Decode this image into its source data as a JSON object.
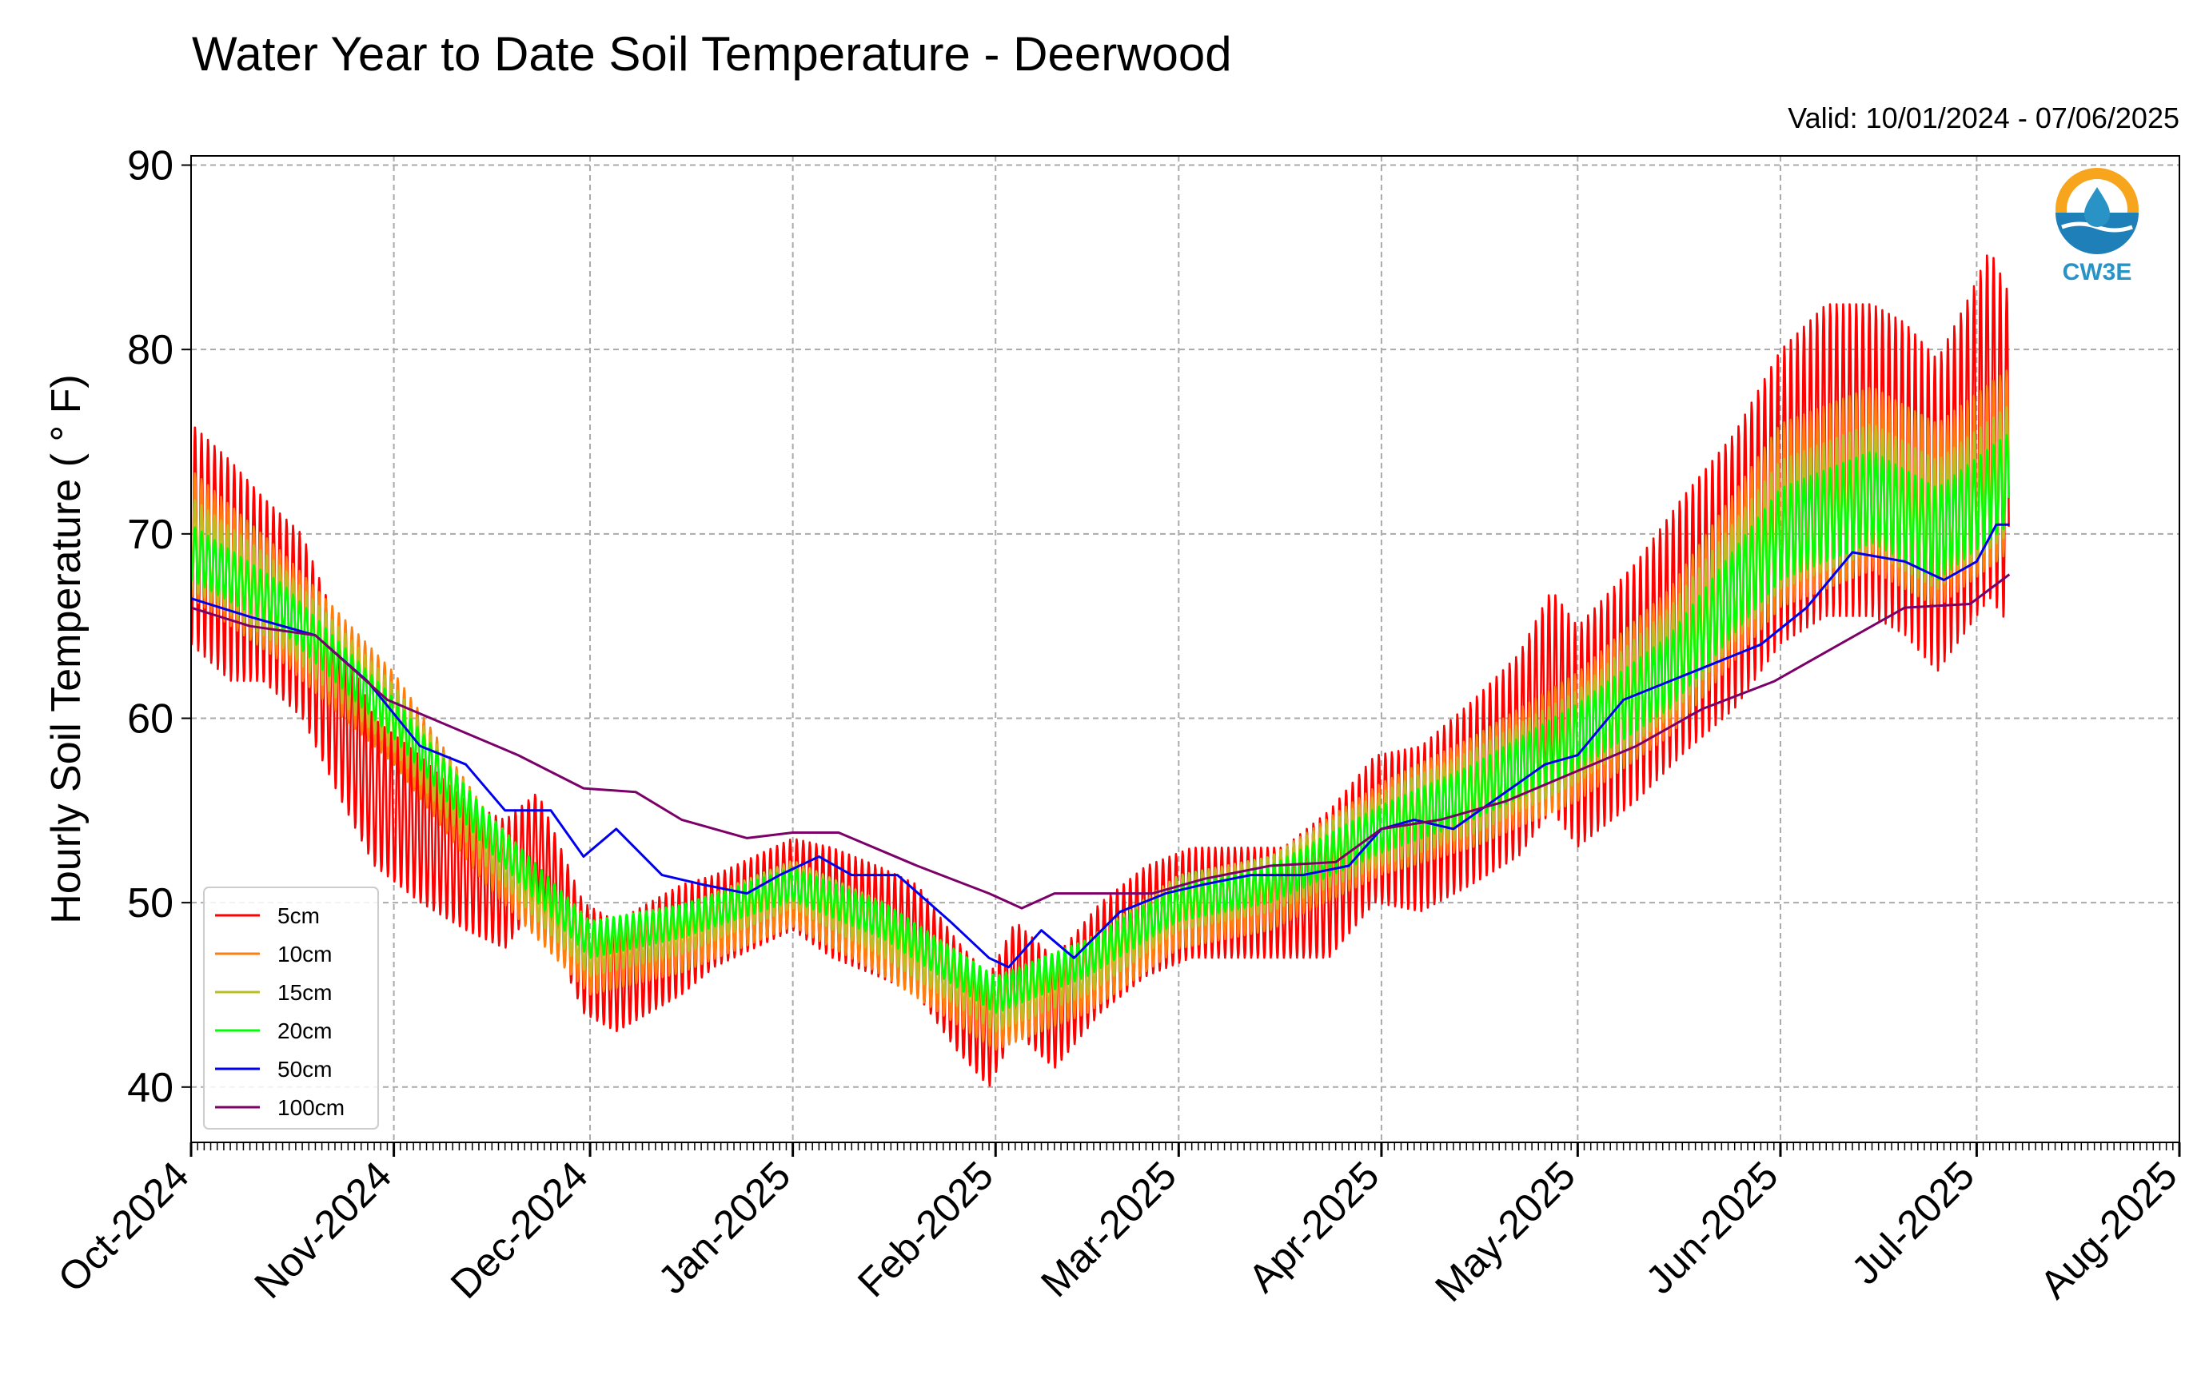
{
  "chart_data": {
    "type": "line",
    "title": "Water Year to Date Soil Temperature - Deerwood",
    "subtitle": "Valid: 10/01/2024 - 07/06/2025",
    "ylabel": "Hourly Soil Temperature ( ° F)",
    "xlabel": "",
    "ylim": [
      37,
      90.5
    ],
    "yticks": [
      40,
      50,
      60,
      70,
      80,
      90
    ],
    "ytick_labels": [
      "40",
      "50",
      "60",
      "70",
      "80",
      "90"
    ],
    "xlim": [
      "2024-10-01",
      "2025-08-01"
    ],
    "xticks": [
      "2024-10-01",
      "2024-11-01",
      "2024-12-01",
      "2025-01-01",
      "2025-02-01",
      "2025-03-01",
      "2025-04-01",
      "2025-05-01",
      "2025-06-01",
      "2025-07-01",
      "2025-08-01"
    ],
    "xtick_labels": [
      "Oct-2024",
      "Nov-2024",
      "Dec-2024",
      "Jan-2025",
      "Feb-2025",
      "Mar-2025",
      "Apr-2025",
      "May-2025",
      "Jun-2025",
      "Jul-2025",
      "Aug-2025"
    ],
    "grid": true,
    "legend_position": "lower-left",
    "logo_text": "CW3E",
    "series": [
      {
        "name": "5cm",
        "color": "#ff0000",
        "dates": [
          "2024-10-01",
          "2024-10-07",
          "2024-10-12",
          "2024-10-18",
          "2024-10-24",
          "2024-10-29",
          "2024-11-05",
          "2024-11-12",
          "2024-11-18",
          "2024-11-23",
          "2024-11-30",
          "2024-12-05",
          "2024-12-10",
          "2024-12-15",
          "2024-12-20",
          "2024-12-26",
          "2025-01-01",
          "2025-01-07",
          "2025-01-14",
          "2025-01-20",
          "2025-01-26",
          "2025-01-31",
          "2025-02-04",
          "2025-02-10",
          "2025-02-17",
          "2025-02-24",
          "2025-03-03",
          "2025-03-10",
          "2025-03-17",
          "2025-03-24",
          "2025-03-31",
          "2025-04-07",
          "2025-04-15",
          "2025-04-22",
          "2025-04-27",
          "2025-05-01",
          "2025-05-10",
          "2025-05-17",
          "2025-05-25",
          "2025-06-01",
          "2025-06-08",
          "2025-06-15",
          "2025-06-20",
          "2025-06-25",
          "2025-06-30",
          "2025-07-03",
          "2025-07-06"
        ],
        "mean": [
          70,
          68,
          67,
          65,
          60,
          56,
          54,
          52,
          51,
          53,
          47,
          46,
          47,
          48,
          49,
          50,
          51,
          50,
          49,
          48,
          45,
          43,
          46,
          44,
          47,
          49,
          50,
          50,
          50,
          51,
          54,
          54,
          56,
          58,
          61,
          59,
          62,
          65,
          68,
          72,
          74,
          74,
          73,
          71,
          74,
          76,
          74
        ],
        "amplitude": [
          6,
          6,
          5,
          5,
          4.5,
          4,
          4,
          3.5,
          3.5,
          3,
          3,
          3,
          3,
          3,
          2.5,
          2.5,
          2.5,
          3,
          3,
          3,
          3,
          3,
          3,
          3,
          3,
          3,
          3,
          3,
          3,
          4,
          4,
          4.5,
          5,
          5.5,
          6,
          6,
          6.5,
          7,
          7.5,
          8,
          8.5,
          8.5,
          8.5,
          8.5,
          9,
          9.5,
          9
        ]
      },
      {
        "name": "10cm",
        "color": "#ff7f0e",
        "dates": [
          "2024-10-01",
          "2024-10-15",
          "2024-11-01",
          "2024-11-15",
          "2024-12-01",
          "2024-12-15",
          "2025-01-01",
          "2025-01-15",
          "2025-02-01",
          "2025-02-15",
          "2025-03-01",
          "2025-03-15",
          "2025-04-01",
          "2025-04-15",
          "2025-05-01",
          "2025-05-15",
          "2025-06-01",
          "2025-06-15",
          "2025-06-25",
          "2025-07-06"
        ],
        "mean": [
          70,
          66,
          60,
          53,
          47,
          48,
          50.5,
          48,
          44,
          46,
          49.5,
          50.5,
          54,
          56,
          59,
          63,
          71,
          73,
          71,
          74
        ],
        "amplitude": [
          3.5,
          3,
          2.5,
          2,
          2,
          1.8,
          1.8,
          2,
          2,
          2,
          2,
          2,
          2.5,
          3,
          3.5,
          4,
          5,
          5,
          5,
          5
        ]
      },
      {
        "name": "15cm",
        "color": "#bcbd22",
        "dates": [
          "2024-10-01",
          "2024-10-15",
          "2024-11-01",
          "2024-11-15",
          "2024-12-01",
          "2024-12-15",
          "2025-01-01",
          "2025-01-15",
          "2025-02-01",
          "2025-02-15",
          "2025-03-01",
          "2025-03-15",
          "2025-04-01",
          "2025-04-15",
          "2025-05-01",
          "2025-05-15",
          "2025-06-01",
          "2025-06-15",
          "2025-06-25",
          "2025-07-06"
        ],
        "mean": [
          69.5,
          66,
          60,
          53.5,
          47.5,
          48.5,
          51,
          48.5,
          44.5,
          46.5,
          50,
          51,
          54,
          56,
          59,
          63,
          70.5,
          72.5,
          70.5,
          73.5
        ],
        "amplitude": [
          2.5,
          2.2,
          1.8,
          1.5,
          1.5,
          1.3,
          1.3,
          1.5,
          1.5,
          1.5,
          1.5,
          1.5,
          2,
          2.3,
          2.5,
          3,
          3.5,
          3.5,
          3.5,
          3.5
        ]
      },
      {
        "name": "20cm",
        "color": "#00ff00",
        "dates": [
          "2024-10-01",
          "2024-10-15",
          "2024-11-01",
          "2024-11-15",
          "2024-12-01",
          "2024-12-15",
          "2025-01-01",
          "2025-01-15",
          "2025-02-01",
          "2025-02-15",
          "2025-03-01",
          "2025-03-15",
          "2025-04-01",
          "2025-04-15",
          "2025-05-01",
          "2025-05-15",
          "2025-06-01",
          "2025-06-15",
          "2025-06-25",
          "2025-07-06"
        ],
        "mean": [
          69,
          66,
          60,
          54,
          48,
          49,
          51,
          49,
          45,
          47,
          50,
          51,
          54,
          56,
          59,
          62.5,
          70,
          72,
          70,
          73
        ],
        "amplitude": [
          1.5,
          1.3,
          1.1,
          1,
          1,
          0.9,
          0.9,
          1,
          1,
          1,
          1,
          1,
          1.3,
          1.5,
          1.8,
          2,
          2.5,
          2.5,
          2.5,
          2.5
        ]
      },
      {
        "name": "50cm",
        "color": "#0000ee",
        "dates": [
          "2024-10-01",
          "2024-10-10",
          "2024-10-20",
          "2024-10-28",
          "2024-11-05",
          "2024-11-12",
          "2024-11-18",
          "2024-11-25",
          "2024-11-30",
          "2024-12-05",
          "2024-12-12",
          "2024-12-18",
          "2024-12-25",
          "2024-12-30",
          "2025-01-05",
          "2025-01-10",
          "2025-01-17",
          "2025-01-25",
          "2025-01-31",
          "2025-02-03",
          "2025-02-08",
          "2025-02-13",
          "2025-02-20",
          "2025-02-27",
          "2025-03-05",
          "2025-03-12",
          "2025-03-20",
          "2025-03-27",
          "2025-04-01",
          "2025-04-06",
          "2025-04-12",
          "2025-04-20",
          "2025-04-26",
          "2025-05-01",
          "2025-05-08",
          "2025-05-15",
          "2025-05-22",
          "2025-05-29",
          "2025-06-05",
          "2025-06-12",
          "2025-06-20",
          "2025-06-26",
          "2025-07-01",
          "2025-07-04",
          "2025-07-06"
        ],
        "values": [
          66.5,
          65.5,
          64.5,
          62,
          58.5,
          57.5,
          55,
          55,
          52.5,
          54,
          51.5,
          51,
          50.5,
          51.5,
          52.5,
          51.5,
          51.5,
          49,
          47,
          46.5,
          48.5,
          47,
          49.5,
          50.5,
          51,
          51.5,
          51.5,
          52,
          54,
          54.5,
          54,
          56,
          57.5,
          58,
          61,
          62,
          63,
          64,
          66,
          69,
          68.5,
          67.5,
          68.5,
          70.5,
          70.5
        ]
      },
      {
        "name": "100cm",
        "color": "#7b0068",
        "dates": [
          "2024-10-01",
          "2024-10-10",
          "2024-10-20",
          "2024-10-31",
          "2024-11-10",
          "2024-11-20",
          "2024-11-30",
          "2024-12-08",
          "2024-12-15",
          "2024-12-25",
          "2025-01-01",
          "2025-01-08",
          "2025-01-20",
          "2025-01-31",
          "2025-02-05",
          "2025-02-10",
          "2025-02-15",
          "2025-02-25",
          "2025-03-05",
          "2025-03-15",
          "2025-03-25",
          "2025-04-01",
          "2025-04-10",
          "2025-04-20",
          "2025-04-30",
          "2025-05-10",
          "2025-05-20",
          "2025-05-31",
          "2025-06-10",
          "2025-06-20",
          "2025-06-30",
          "2025-07-06"
        ],
        "values": [
          66,
          65,
          64.5,
          61,
          59.5,
          58,
          56.2,
          56,
          54.5,
          53.5,
          53.8,
          53.8,
          52,
          50.5,
          49.7,
          50.5,
          50.5,
          50.5,
          51.3,
          52,
          52.2,
          54,
          54.5,
          55.5,
          57,
          58.5,
          60.5,
          62,
          64,
          66,
          66.2,
          67.8
        ]
      }
    ]
  }
}
